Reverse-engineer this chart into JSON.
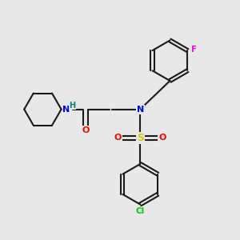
{
  "bg_color": "#e8e8e8",
  "bond_color": "#1a1a1a",
  "bond_width": 1.5,
  "atom_colors": {
    "N": "#0000ff",
    "O": "#ff0000",
    "S": "#cccc00",
    "F": "#ff00ff",
    "Cl": "#00cc00"
  },
  "figsize": [
    3.0,
    3.0
  ],
  "dpi": 100
}
